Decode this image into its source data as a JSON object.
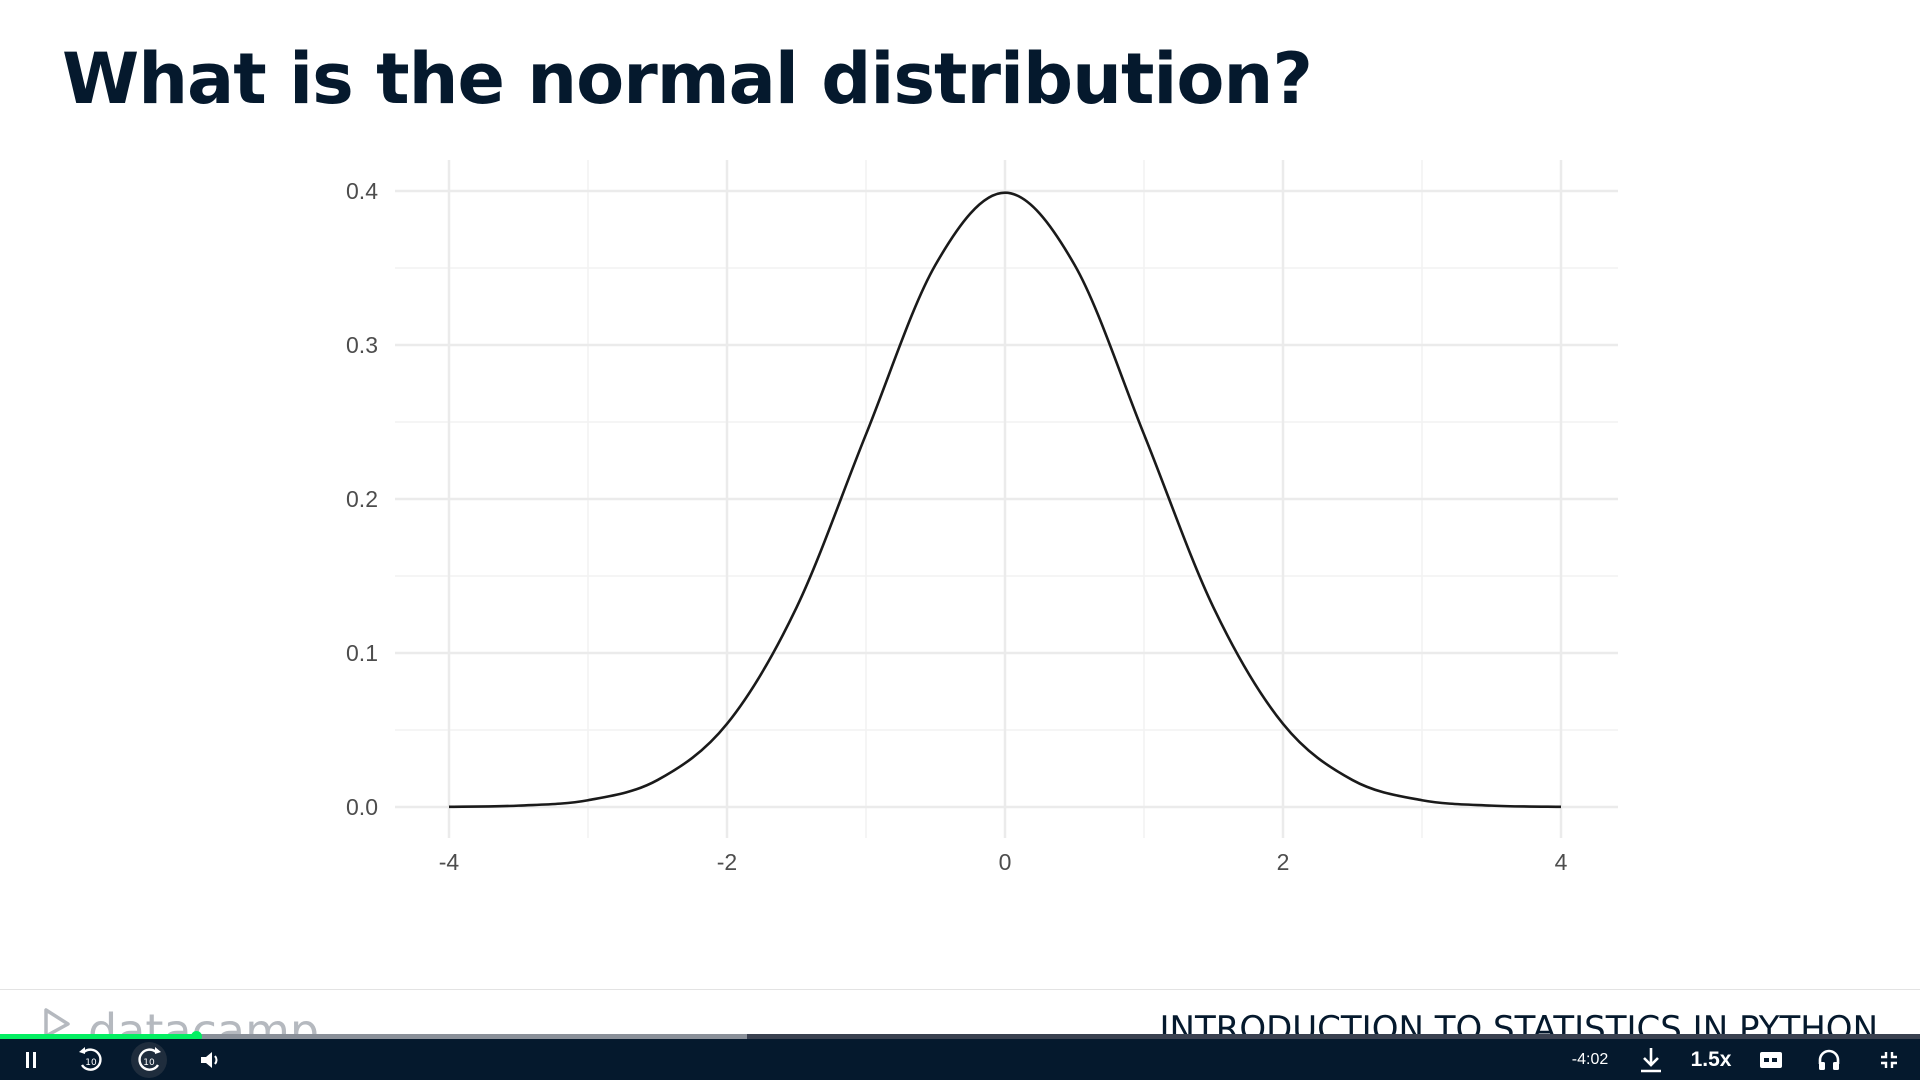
{
  "slide": {
    "title": "What is the normal distribution?"
  },
  "chart_data": {
    "type": "line",
    "title": "",
    "xlabel": "",
    "ylabel": "",
    "xlim": [
      -4,
      4
    ],
    "ylim": [
      0,
      0.4
    ],
    "x_ticks": [
      -4,
      -2,
      0,
      2,
      4
    ],
    "x_tick_labels": [
      "-4",
      "-2",
      "0",
      "2",
      "4"
    ],
    "y_ticks": [
      0.0,
      0.1,
      0.2,
      0.3,
      0.4
    ],
    "y_tick_labels": [
      "0.0",
      "0.1",
      "0.2",
      "0.3",
      "0.4"
    ],
    "grid": true,
    "series": [
      {
        "distribution": "standard normal density",
        "x": [
          -4,
          -3.5,
          -3,
          -2.5,
          -2,
          -1.5,
          -1,
          -0.5,
          0,
          0.5,
          1,
          1.5,
          2,
          2.5,
          3,
          3.5,
          4
        ],
        "y": [
          0.0001,
          0.0009,
          0.0044,
          0.0175,
          0.054,
          0.1295,
          0.242,
          0.3521,
          0.3989,
          0.3521,
          0.242,
          0.1295,
          0.054,
          0.0175,
          0.0044,
          0.0009,
          0.0001
        ],
        "color": "#1a1a1a"
      }
    ]
  },
  "footer": {
    "logo_text": "datacamp",
    "course_title": "INTRODUCTION TO STATISTICS IN PYTHON"
  },
  "player": {
    "progress_played": 0.102,
    "progress_buffered": 0.389,
    "time_remaining": "-4:02",
    "speed": "1.5x",
    "rewind_seconds": "10",
    "forward_seconds": "10",
    "accent_color": "#03ef62",
    "bar_color": "#05192d",
    "icons": [
      "pause-icon",
      "rewind-10-icon",
      "forward-10-icon",
      "volume-icon",
      "download-icon",
      "captions-icon",
      "headphones-icon",
      "exit-fullscreen-icon"
    ]
  }
}
